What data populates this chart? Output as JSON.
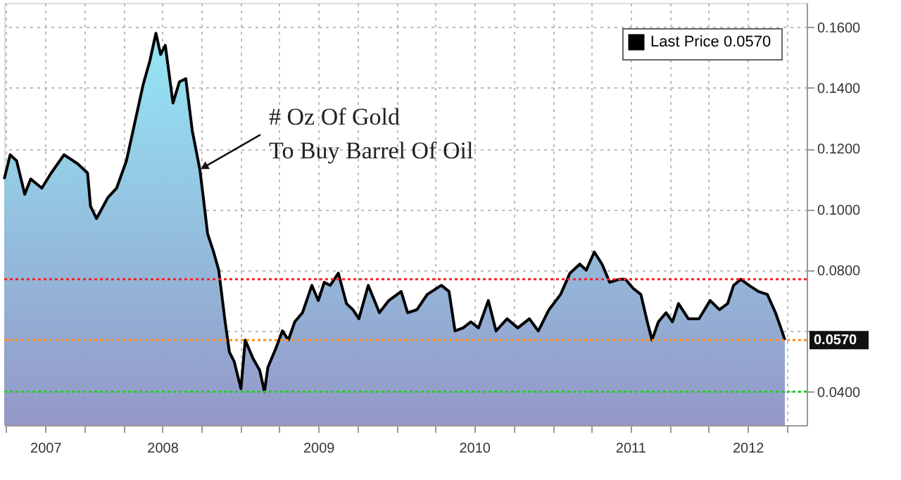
{
  "chart_data": {
    "type": "area",
    "x": [
      "2007-06-27",
      "2007-07-11",
      "2007-07-26",
      "2007-08-14",
      "2007-08-28",
      "2007-09-23",
      "2007-10-15",
      "2007-11-14",
      "2007-12-16",
      "2008-01-08",
      "2008-01-15",
      "2008-01-29",
      "2008-02-25",
      "2008-03-16",
      "2008-04-08",
      "2008-05-03",
      "2008-05-17",
      "2008-06-02",
      "2008-06-16",
      "2008-06-27",
      "2008-07-08",
      "2008-07-26",
      "2008-08-10",
      "2008-08-25",
      "2008-09-09",
      "2008-09-27",
      "2008-10-04",
      "2008-10-15",
      "2008-10-29",
      "2008-11-10",
      "2008-11-25",
      "2008-12-05",
      "2008-12-16",
      "2009-01-01",
      "2009-01-11",
      "2009-01-29",
      "2009-02-14",
      "2009-02-25",
      "2009-03-05",
      "2009-03-23",
      "2009-04-08",
      "2009-04-22",
      "2009-05-07",
      "2009-05-25",
      "2009-06-16",
      "2009-07-01",
      "2009-07-15",
      "2009-07-29",
      "2009-08-17",
      "2009-09-05",
      "2009-09-20",
      "2009-10-04",
      "2009-10-26",
      "2009-11-21",
      "2009-12-13",
      "2010-01-11",
      "2010-01-26",
      "2010-02-17",
      "2010-03-13",
      "2010-04-15",
      "2010-05-03",
      "2010-05-17",
      "2010-06-05",
      "2010-06-23",
      "2010-07-11",
      "2010-08-03",
      "2010-08-21",
      "2010-09-16",
      "2010-10-11",
      "2010-11-07",
      "2010-11-28",
      "2010-12-23",
      "2011-01-19",
      "2011-02-10",
      "2011-03-05",
      "2011-03-20",
      "2011-04-08",
      "2011-04-26",
      "2011-05-14",
      "2011-06-05",
      "2011-06-20",
      "2011-07-08",
      "2011-07-26",
      "2011-08-10",
      "2011-08-21",
      "2011-09-05",
      "2011-09-23",
      "2011-10-08",
      "2011-10-22",
      "2011-11-14",
      "2011-12-09",
      "2012-01-04",
      "2012-01-26",
      "2012-02-14",
      "2012-02-28",
      "2012-03-16",
      "2012-04-04",
      "2012-04-26",
      "2012-05-17",
      "2012-06-05",
      "2012-06-20",
      "2012-06-27"
    ],
    "series": [
      {
        "name": "Last Price  0.0570",
        "color": "#000000",
        "values": [
          0.11,
          0.118,
          0.116,
          0.105,
          0.11,
          0.107,
          0.112,
          0.118,
          0.115,
          0.112,
          0.101,
          0.097,
          0.104,
          0.107,
          0.116,
          0.132,
          0.141,
          0.149,
          0.158,
          0.151,
          0.154,
          0.135,
          0.142,
          0.143,
          0.126,
          0.113,
          0.105,
          0.092,
          0.086,
          0.08,
          0.063,
          0.053,
          0.05,
          0.041,
          0.057,
          0.051,
          0.047,
          0.04,
          0.048,
          0.054,
          0.06,
          0.057,
          0.063,
          0.066,
          0.075,
          0.07,
          0.076,
          0.075,
          0.079,
          0.069,
          0.067,
          0.064,
          0.075,
          0.066,
          0.07,
          0.073,
          0.066,
          0.067,
          0.072,
          0.075,
          0.073,
          0.06,
          0.061,
          0.063,
          0.061,
          0.07,
          0.06,
          0.064,
          0.061,
          0.064,
          0.06,
          0.067,
          0.072,
          0.079,
          0.082,
          0.08,
          0.086,
          0.082,
          0.076,
          0.077,
          0.077,
          0.074,
          0.072,
          0.063,
          0.057,
          0.063,
          0.066,
          0.063,
          0.069,
          0.064,
          0.064,
          0.07,
          0.067,
          0.069,
          0.075,
          0.077,
          0.075,
          0.073,
          0.072,
          0.066,
          0.06,
          0.057
        ]
      }
    ],
    "xlim": [
      "2007-06-27",
      "2012-08-17"
    ],
    "xticks": [
      {
        "value": "2007-07-01",
        "label": null
      },
      {
        "value": "2007-10-01",
        "label": "2007"
      },
      {
        "value": "2008-01-01",
        "label": null
      },
      {
        "value": "2008-04-01",
        "label": null
      },
      {
        "value": "2008-07-01",
        "label": "2008"
      },
      {
        "value": "2008-10-01",
        "label": null
      },
      {
        "value": "2009-01-01",
        "label": null
      },
      {
        "value": "2009-04-01",
        "label": null
      },
      {
        "value": "2009-07-01",
        "label": "2009"
      },
      {
        "value": "2009-10-01",
        "label": null
      },
      {
        "value": "2010-01-01",
        "label": null
      },
      {
        "value": "2010-04-01",
        "label": null
      },
      {
        "value": "2010-07-01",
        "label": "2010"
      },
      {
        "value": "2010-10-01",
        "label": null
      },
      {
        "value": "2011-01-01",
        "label": null
      },
      {
        "value": "2011-04-01",
        "label": null
      },
      {
        "value": "2011-07-01",
        "label": "2011"
      },
      {
        "value": "2011-10-01",
        "label": null
      },
      {
        "value": "2012-01-01",
        "label": null
      },
      {
        "value": "2012-04-01",
        "label": "2012"
      },
      {
        "value": "2012-07-01",
        "label": null
      }
    ],
    "ylim": [
      0.029,
      0.168
    ],
    "yticks": [
      {
        "value": 0.04,
        "label": "0.0400"
      },
      {
        "value": 0.06,
        "label": null
      },
      {
        "value": 0.08,
        "label": "0.0800"
      },
      {
        "value": 0.1,
        "label": "0.1000"
      },
      {
        "value": 0.12,
        "label": "0.1200"
      },
      {
        "value": 0.14,
        "label": "0.1400"
      },
      {
        "value": 0.16,
        "label": "0.1600"
      }
    ],
    "ref_lines": [
      {
        "axis": "y",
        "value": 0.077,
        "label": null,
        "color": "#ff2020",
        "line_style": "dotted"
      },
      {
        "axis": "y",
        "value": 0.057,
        "label": "0.0570",
        "color": "#ff9020",
        "line_style": "dotted"
      },
      {
        "axis": "y",
        "value": 0.04,
        "label": null,
        "color": "#20d020",
        "line_style": "dotted"
      }
    ],
    "annotations": [
      {
        "text": "# Oz Of Gold\nTo Buy Barrel Of Oil",
        "x": "2008-09-27",
        "y": 0.113
      }
    ],
    "grid": true,
    "legend": "top right"
  }
}
